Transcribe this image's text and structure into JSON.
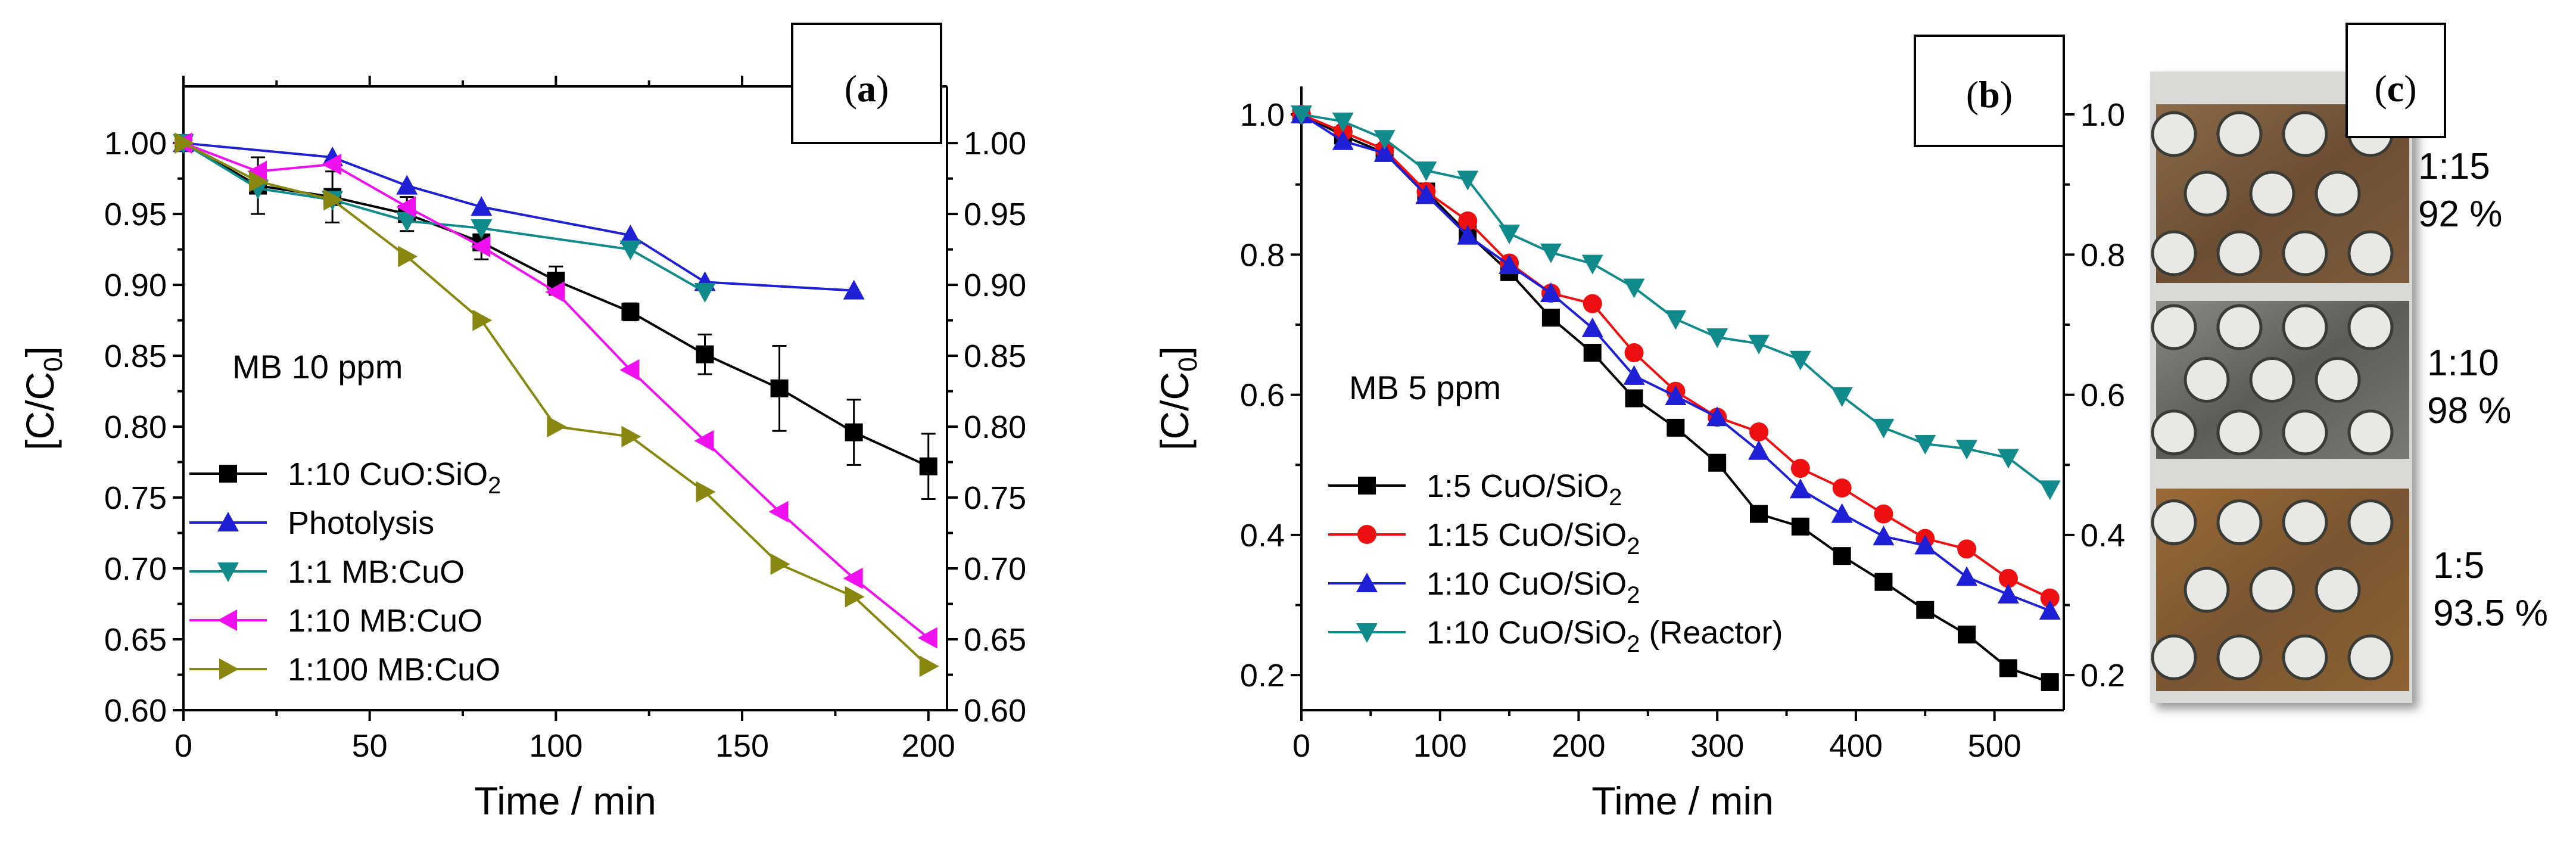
{
  "chart_data": [
    {
      "id": "a",
      "panel_label": "a",
      "type": "line",
      "title": "",
      "annotation": "MB 10 ppm",
      "xlabel": "Time / min",
      "ylabel": "[C/C0]",
      "ylabel_main": "[C/C",
      "ylabel_sub": "0",
      "ylabel_end": "]",
      "xlim": [
        0,
        205
      ],
      "ylim": [
        0.6,
        1.04
      ],
      "xticks": [
        0,
        50,
        100,
        150,
        200
      ],
      "yticks": [
        0.6,
        0.65,
        0.7,
        0.75,
        0.8,
        0.85,
        0.9,
        0.95,
        1.0
      ],
      "xtick_labels": [
        "0",
        "50",
        "100",
        "150",
        "200"
      ],
      "ytick_labels": [
        "0.60",
        "0.65",
        "0.70",
        "0.75",
        "0.80",
        "0.85",
        "0.90",
        "0.95",
        "1.00"
      ],
      "right_axis": true,
      "top_axis": true,
      "legend_position": "bottom-left",
      "series": [
        {
          "name": "1:10 CuO:SiO2",
          "legend_main": "1:10 CuO:SiO",
          "legend_sub": "2",
          "color": "#000000",
          "marker": "square",
          "x": [
            0,
            20,
            40,
            60,
            80,
            100,
            120,
            140,
            160,
            180,
            200
          ],
          "y": [
            1.0,
            0.97,
            0.962,
            0.95,
            0.93,
            0.903,
            0.881,
            0.851,
            0.827,
            0.796,
            0.772
          ],
          "err": [
            0,
            0.02,
            0.018,
            0.012,
            0.012,
            0.01,
            0.006,
            0.014,
            0.03,
            0.023,
            0.023
          ]
        },
        {
          "name": "Photolysis",
          "legend_main": "Photolysis",
          "legend_sub": "",
          "color": "#1f1fd6",
          "marker": "triangle-up",
          "x": [
            0,
            40,
            60,
            80,
            120,
            140,
            180
          ],
          "y": [
            1.0,
            0.99,
            0.97,
            0.955,
            0.935,
            0.902,
            0.896
          ]
        },
        {
          "name": "1:1 MB:CuO",
          "legend_main": "1:1 MB:CuO",
          "legend_sub": "",
          "color": "#108a8a",
          "marker": "triangle-down",
          "x": [
            0,
            20,
            40,
            60,
            80,
            120,
            140
          ],
          "y": [
            1.0,
            0.968,
            0.96,
            0.945,
            0.94,
            0.925,
            0.895
          ]
        },
        {
          "name": "1:10 MB:CuO",
          "legend_main": "1:10 MB:CuO",
          "legend_sub": "",
          "color": "#ee10ee",
          "marker": "triangle-left",
          "x": [
            0,
            20,
            40,
            60,
            80,
            100,
            120,
            140,
            160,
            180,
            200
          ],
          "y": [
            1.0,
            0.98,
            0.985,
            0.955,
            0.927,
            0.895,
            0.84,
            0.79,
            0.74,
            0.693,
            0.651
          ]
        },
        {
          "name": "1:100 MB:CuO",
          "legend_main": "1:100 MB:CuO",
          "legend_sub": "",
          "color": "#888810",
          "marker": "triangle-right",
          "x": [
            0,
            20,
            40,
            60,
            80,
            100,
            120,
            140,
            160,
            180,
            200
          ],
          "y": [
            1.0,
            0.973,
            0.96,
            0.92,
            0.875,
            0.8,
            0.793,
            0.754,
            0.703,
            0.68,
            0.631
          ]
        }
      ]
    },
    {
      "id": "b",
      "panel_label": "b",
      "type": "line",
      "title": "",
      "annotation": "MB 5 ppm",
      "xlabel": "Time / min",
      "ylabel": "[C/C0]",
      "ylabel_main": "[C/C",
      "ylabel_sub": "0",
      "ylabel_end": "]",
      "xlim": [
        0,
        550
      ],
      "ylim": [
        0.15,
        1.04
      ],
      "xticks": [
        0,
        100,
        200,
        300,
        400,
        500
      ],
      "yticks": [
        0.2,
        0.4,
        0.6,
        0.8,
        1.0
      ],
      "xtick_labels": [
        "0",
        "100",
        "200",
        "300",
        "400",
        "500"
      ],
      "ytick_labels": [
        "0.2",
        "0.4",
        "0.6",
        "0.8",
        "1.0"
      ],
      "right_axis": true,
      "top_axis": false,
      "legend_position": "bottom-left",
      "series": [
        {
          "name": "1:5 CuO/SiO2",
          "legend_main": "1:5 CuO/SiO",
          "legend_sub": "2",
          "legend_end": "",
          "color": "#000000",
          "marker": "square",
          "x": [
            0,
            30,
            60,
            90,
            120,
            150,
            180,
            210,
            240,
            270,
            300,
            330,
            360,
            390,
            420,
            450,
            480,
            510,
            540
          ],
          "y": [
            1.0,
            0.97,
            0.945,
            0.89,
            0.83,
            0.775,
            0.71,
            0.66,
            0.595,
            0.553,
            0.503,
            0.43,
            0.412,
            0.37,
            0.333,
            0.293,
            0.258,
            0.21,
            0.19
          ]
        },
        {
          "name": "1:15 CuO/SiO2",
          "legend_main": "1:15 CuO/SiO",
          "legend_sub": "2",
          "legend_end": "",
          "color": "#ee1010",
          "marker": "circle",
          "x": [
            0,
            30,
            60,
            90,
            120,
            150,
            180,
            210,
            240,
            270,
            300,
            330,
            360,
            390,
            420,
            450,
            480,
            510,
            540
          ],
          "y": [
            1.0,
            0.975,
            0.95,
            0.89,
            0.848,
            0.788,
            0.745,
            0.73,
            0.66,
            0.605,
            0.568,
            0.547,
            0.495,
            0.467,
            0.43,
            0.395,
            0.38,
            0.338,
            0.31
          ]
        },
        {
          "name": "1:10 CuO/SiO2",
          "legend_main": "1:10 CuO/SiO",
          "legend_sub": "2",
          "legend_end": "",
          "color": "#1f1fd6",
          "marker": "triangle-up",
          "x": [
            0,
            30,
            60,
            90,
            120,
            150,
            180,
            210,
            240,
            270,
            300,
            330,
            360,
            390,
            420,
            450,
            480,
            510,
            540
          ],
          "y": [
            1.0,
            0.962,
            0.945,
            0.885,
            0.827,
            0.785,
            0.745,
            0.695,
            0.627,
            0.598,
            0.568,
            0.52,
            0.465,
            0.43,
            0.398,
            0.385,
            0.34,
            0.315,
            0.292
          ]
        },
        {
          "name": "1:10 CuO/SiO2 (Reactor)",
          "legend_main": "1:10 CuO/SiO",
          "legend_sub": "2",
          "legend_end": " (Reactor)",
          "color": "#108a8a",
          "marker": "triangle-down",
          "x": [
            0,
            30,
            60,
            90,
            120,
            150,
            180,
            210,
            240,
            270,
            300,
            330,
            360,
            390,
            420,
            450,
            480,
            510,
            540
          ],
          "y": [
            1.0,
            0.99,
            0.965,
            0.92,
            0.907,
            0.83,
            0.803,
            0.787,
            0.753,
            0.708,
            0.682,
            0.673,
            0.65,
            0.598,
            0.553,
            0.53,
            0.523,
            0.51,
            0.465
          ]
        }
      ]
    }
  ],
  "panel_c": {
    "panel_label": "c",
    "samples": [
      {
        "ratio": "1:15",
        "percent": "92 %"
      },
      {
        "ratio": "1:10",
        "percent": "98 %"
      },
      {
        "ratio": "1:5",
        "percent": "93.5 %"
      }
    ]
  }
}
